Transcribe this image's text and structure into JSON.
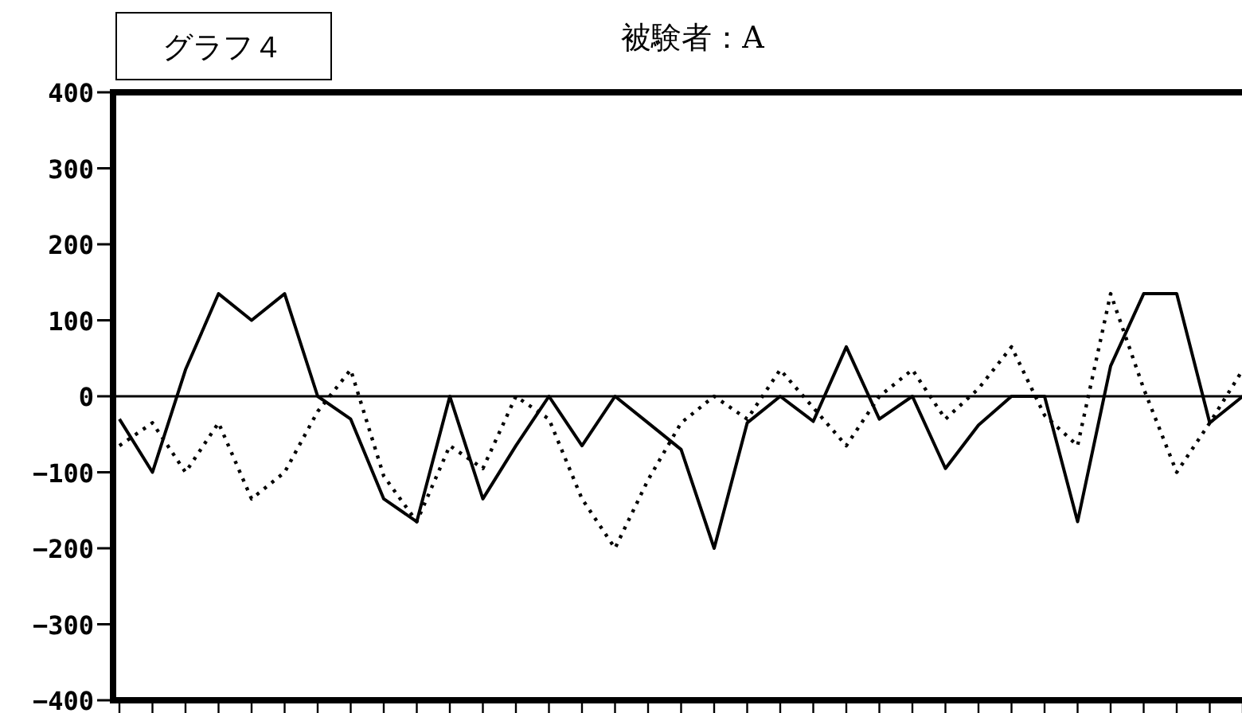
{
  "chart_data": {
    "type": "line",
    "title": "被験者：A",
    "annotations": [
      "グラフ４"
    ],
    "categories": [
      null,
      null,
      null,
      null,
      null,
      null,
      null,
      null,
      null,
      null,
      null,
      null,
      null,
      null,
      null,
      null,
      null,
      null,
      null,
      null,
      null,
      null,
      null,
      null,
      null,
      null,
      null,
      null,
      null,
      null,
      null,
      null,
      null,
      null,
      null
    ],
    "ylim": [
      -400,
      400
    ],
    "yticks": [
      -400,
      -300,
      -200,
      -100,
      0,
      100,
      200,
      300,
      400
    ],
    "ref_lines": [
      {
        "axis": "y",
        "value": 0,
        "color": "#000000"
      }
    ],
    "series": [
      {
        "color": "#000000",
        "line_style": "solid",
        "values": [
          -30,
          -100,
          35,
          135,
          100,
          135,
          0,
          -30,
          -135,
          -165,
          0,
          -135,
          -65,
          0,
          -65,
          0,
          -35,
          -70,
          -200,
          -35,
          0,
          -33,
          65,
          -30,
          0,
          -95,
          -38,
          0,
          0,
          -165,
          40,
          135,
          135,
          -35,
          0
        ]
      },
      {
        "color": "#000000",
        "line_style": "dotted",
        "values": [
          -65,
          -35,
          -100,
          -35,
          -135,
          -100,
          -20,
          35,
          -105,
          -165,
          -65,
          -95,
          0,
          -30,
          -135,
          -200,
          -110,
          -35,
          0,
          -30,
          35,
          -15,
          -65,
          0,
          35,
          -30,
          10,
          65,
          -25,
          -65,
          135,
          10,
          -100,
          -35,
          35
        ]
      }
    ]
  }
}
